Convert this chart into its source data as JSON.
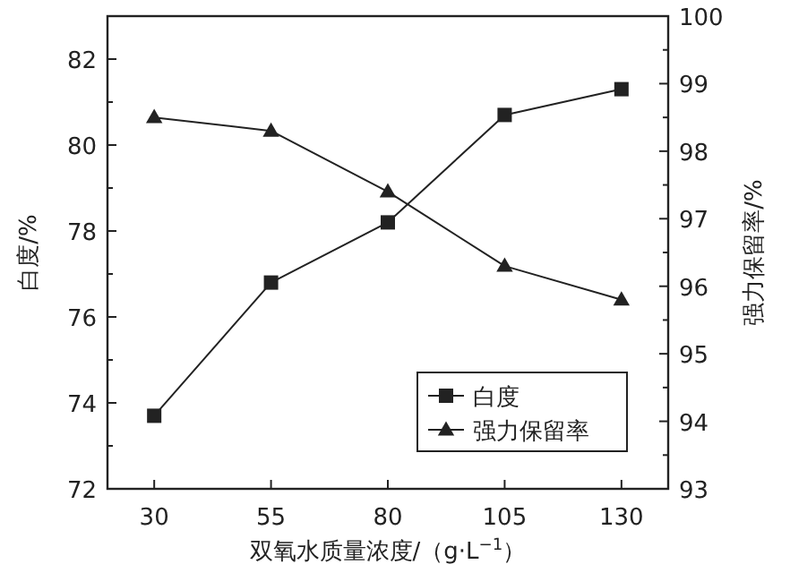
{
  "chart_data": {
    "type": "line",
    "xlabel": "双氧水质量浓度/（g·L$^{−1}$）",
    "ylabel": "白度/%",
    "y2label": "强力保留率/%",
    "x": [
      30,
      55,
      80,
      105,
      130
    ],
    "xlim": [
      20,
      140
    ],
    "xticks": [
      30,
      55,
      80,
      105,
      130
    ],
    "ylim": [
      72,
      83
    ],
    "yticks": [
      72,
      {
        "value": 73,
        "label": null
      },
      74,
      {
        "value": 75,
        "label": null
      },
      76,
      {
        "value": 77,
        "label": null
      },
      78,
      {
        "value": 79,
        "label": null
      },
      80,
      {
        "value": 81,
        "label": null
      },
      82
    ],
    "y2lim": [
      93,
      100
    ],
    "y2ticks": [
      93,
      {
        "value": 93.5,
        "label": null
      },
      94,
      {
        "value": 94.5,
        "label": null
      },
      95,
      {
        "value": 95.5,
        "label": null
      },
      96,
      {
        "value": 96.5,
        "label": null
      },
      97,
      {
        "value": 97.5,
        "label": null
      },
      98,
      {
        "value": 98.5,
        "label": null
      },
      99,
      {
        "value": 99.5,
        "label": null
      },
      100
    ],
    "series": [
      {
        "name": "白度",
        "color": "#222222",
        "marker": "square",
        "values": [
          73.7,
          76.8,
          78.2,
          80.7,
          81.3
        ]
      },
      {
        "name": "强力保留率",
        "color": "#222222",
        "marker": "triangle",
        "axis": "y2",
        "values": [
          98.5,
          98.3,
          97.4,
          96.3,
          95.8
        ]
      }
    ],
    "legend": "bottom right",
    "grid": false
  }
}
